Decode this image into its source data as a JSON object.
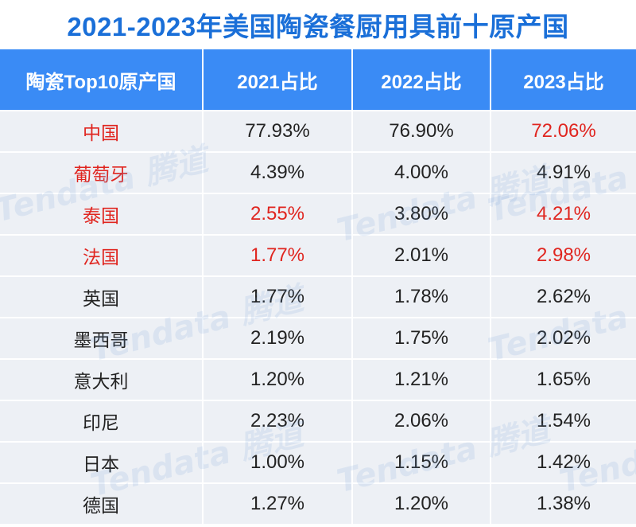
{
  "title": "2021-2023年美国陶瓷餐厨用具前十原产国",
  "watermark": "Tendata 腾道",
  "chart_data": {
    "type": "table",
    "title": "2021-2023年美国陶瓷餐厨用具前十原产国",
    "columns": [
      "陶瓷Top10原产国",
      "2021占比",
      "2022占比",
      "2023占比"
    ],
    "rows": [
      {
        "country": "中国",
        "y2021": "77.93%",
        "y2022": "76.90%",
        "y2023": "72.06%",
        "hl": [
          true,
          false,
          false,
          true
        ]
      },
      {
        "country": "葡萄牙",
        "y2021": "4.39%",
        "y2022": "4.00%",
        "y2023": "4.91%",
        "hl": [
          true,
          false,
          false,
          false
        ]
      },
      {
        "country": "泰国",
        "y2021": "2.55%",
        "y2022": "3.80%",
        "y2023": "4.21%",
        "hl": [
          true,
          true,
          false,
          true
        ]
      },
      {
        "country": "法国",
        "y2021": "1.77%",
        "y2022": "2.01%",
        "y2023": "2.98%",
        "hl": [
          true,
          true,
          false,
          true
        ]
      },
      {
        "country": "英国",
        "y2021": "1.77%",
        "y2022": "1.78%",
        "y2023": "2.62%",
        "hl": [
          false,
          false,
          false,
          false
        ]
      },
      {
        "country": "墨西哥",
        "y2021": "2.19%",
        "y2022": "1.75%",
        "y2023": "2.02%",
        "hl": [
          false,
          false,
          false,
          false
        ]
      },
      {
        "country": "意大利",
        "y2021": "1.20%",
        "y2022": "1.21%",
        "y2023": "1.65%",
        "hl": [
          false,
          false,
          false,
          false
        ]
      },
      {
        "country": "印尼",
        "y2021": "2.23%",
        "y2022": "2.06%",
        "y2023": "1.54%",
        "hl": [
          false,
          false,
          false,
          false
        ]
      },
      {
        "country": "日本",
        "y2021": "1.00%",
        "y2022": "1.15%",
        "y2023": "1.42%",
        "hl": [
          false,
          false,
          false,
          false
        ]
      },
      {
        "country": "德国",
        "y2021": "1.27%",
        "y2022": "1.20%",
        "y2023": "1.38%",
        "hl": [
          false,
          false,
          false,
          false
        ]
      }
    ]
  },
  "colors": {
    "title": "#1a6fd8",
    "header_bg": "#3a8bf5",
    "row_bg": "#edf0f5",
    "highlight": "#e0251f"
  }
}
